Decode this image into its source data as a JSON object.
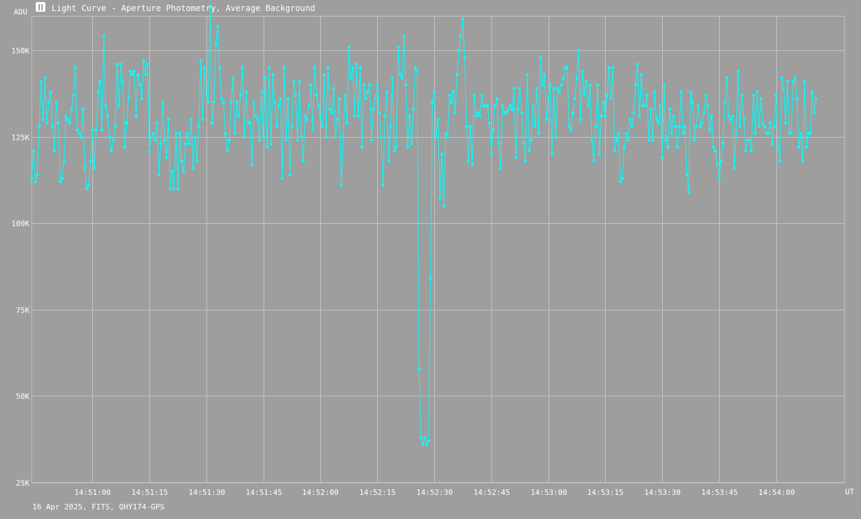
{
  "window": {
    "title": "Light Curve - Aperture Photometry, Average Background",
    "footer": "16 Apr 2025, FITS, QHY174-GPS",
    "icon": "chart-app-icon"
  },
  "colors": {
    "background": "#9e9e9e",
    "grid": "#c4c4c4",
    "series": "#00ffff",
    "text": "#ffffff"
  },
  "chart_data": {
    "type": "line",
    "title": "Light Curve - Aperture Photometry, Average Background",
    "xlabel": "UT",
    "ylabel": "ADU",
    "xlim": [
      "14:50:44",
      "14:54:18"
    ],
    "ylim": [
      25000,
      160000
    ],
    "grid": true,
    "x_ticks": [
      "14:51:00",
      "14:51:15",
      "14:51:30",
      "14:51:45",
      "14:52:00",
      "14:52:15",
      "14:52:30",
      "14:52:45",
      "14:53:00",
      "14:53:15",
      "14:53:30",
      "14:53:45",
      "14:54:00"
    ],
    "y_ticks": [
      {
        "value": 25000,
        "label": "25K"
      },
      {
        "value": 50000,
        "label": "50K"
      },
      {
        "value": 75000,
        "label": "75K"
      },
      {
        "value": 100000,
        "label": "100K"
      },
      {
        "value": 125000,
        "label": "125K"
      },
      {
        "value": 150000,
        "label": "150K"
      }
    ],
    "series": [
      {
        "start": "14:50:44.0",
        "interval_s": 0.5,
        "values": [
          113000,
          121000,
          112000,
          114000,
          128000,
          141000,
          130000,
          142000,
          129000,
          135000,
          138000,
          128000,
          121000,
          135000,
          129000,
          112000,
          113000,
          118000,
          131000,
          130000,
          129000,
          133000,
          137000,
          145000,
          127000,
          126000,
          125000,
          133000,
          116000,
          110000,
          111000,
          118000,
          127000,
          116000,
          127000,
          138000,
          141000,
          127000,
          154000,
          134000,
          131000,
          125000,
          121000,
          124000,
          128000,
          146000,
          134000,
          146000,
          141000,
          122000,
          129000,
          136000,
          144000,
          143000,
          144000,
          131000,
          143000,
          140000,
          136000,
          147000,
          143000,
          146000,
          121000,
          125000,
          126000,
          124000,
          129000,
          114000,
          123000,
          135000,
          124000,
          119000,
          130000,
          110000,
          115000,
          110000,
          126000,
          110000,
          126000,
          118000,
          115000,
          123000,
          126000,
          123000,
          130000,
          116000,
          125000,
          118000,
          128000,
          147000,
          130000,
          145000,
          137000,
          135000,
          163000,
          129000,
          135000,
          152000,
          157000,
          145000,
          136000,
          135000,
          126000,
          121000,
          124000,
          135000,
          142000,
          126000,
          135000,
          131000,
          137000,
          145000,
          125000,
          138000,
          129000,
          129000,
          117000,
          135000,
          131000,
          130000,
          124000,
          138000,
          125000,
          142000,
          122000,
          145000,
          123000,
          143000,
          135000,
          128000,
          134000,
          136000,
          113000,
          145000,
          124000,
          136000,
          114000,
          128000,
          141000,
          137000,
          124000,
          141000,
          125000,
          118000,
          131000,
          130000,
          134000,
          140000,
          127000,
          145000,
          137000,
          134000,
          131000,
          128000,
          143000,
          125000,
          145000,
          133000,
          132000,
          139000,
          125000,
          130000,
          136000,
          111000,
          125000,
          137000,
          129000,
          151000,
          142000,
          145000,
          131000,
          146000,
          131000,
          145000,
          122000,
          140000,
          136000,
          138000,
          140000,
          124000,
          133000,
          136000,
          140000,
          132000,
          125000,
          111000,
          131000,
          138000,
          118000,
          128000,
          142000,
          121000,
          122000,
          151000,
          143000,
          142000,
          154000,
          140000,
          122000,
          131000,
          123000,
          133000,
          145000,
          144000,
          58000,
          38000,
          36000,
          38000,
          36000,
          37000,
          84000,
          135000,
          138000,
          125000,
          130000,
          107000,
          120000,
          105000,
          126000,
          125000,
          137000,
          135000,
          138000,
          132000,
          143000,
          150000,
          154000,
          159000,
          148000,
          128000,
          118000,
          128000,
          117000,
          137000,
          131000,
          132000,
          131000,
          137000,
          134000,
          134000,
          134000,
          129000,
          120000,
          127000,
          134000,
          136000,
          123000,
          116000,
          134000,
          132000,
          132000,
          133000,
          134000,
          133000,
          139000,
          119000,
          133000,
          139000,
          132000,
          123000,
          118000,
          143000,
          121000,
          124000,
          134000,
          128000,
          139000,
          126000,
          148000,
          140000,
          143000,
          130000,
          136000,
          140000,
          120000,
          139000,
          125000,
          139000,
          138000,
          140000,
          142000,
          145000,
          145000,
          128000,
          127000,
          132000,
          136000,
          142000,
          150000,
          130000,
          144000,
          137000,
          141000,
          134000,
          140000,
          124000,
          118000,
          128000,
          140000,
          120000,
          131000,
          135000,
          131000,
          137000,
          145000,
          136000,
          145000,
          121000,
          124000,
          126000,
          112000,
          113000,
          122000,
          126000,
          124000,
          130000,
          128000,
          132000,
          140000,
          146000,
          131000,
          143000,
          134000,
          134000,
          137000,
          124000,
          133000,
          124000,
          138000,
          130000,
          129000,
          134000,
          119000,
          140000,
          124000,
          122000,
          133000,
          126000,
          131000,
          128000,
          122000,
          128000,
          138000,
          126000,
          128000,
          114000,
          109000,
          138000,
          135000,
          124000,
          128000,
          134000,
          128000,
          129000,
          132000,
          137000,
          134000,
          127000,
          131000,
          122000,
          121000,
          117000,
          113000,
          118000,
          123000,
          135000,
          142000,
          131000,
          130000,
          131000,
          116000,
          126000,
          144000,
          128000,
          137000,
          130000,
          121000,
          124000,
          124000,
          121000,
          137000,
          126000,
          138000,
          128000,
          136000,
          129000,
          128000,
          126000,
          126000,
          129000,
          123000,
          128000,
          137000,
          122000,
          118000,
          142000,
          139000,
          129000,
          141000,
          126000,
          126000,
          141000,
          142000,
          136000,
          122000,
          126000,
          118000,
          141000,
          122000,
          126000,
          126000,
          138000,
          132000,
          136000
        ]
      }
    ]
  }
}
